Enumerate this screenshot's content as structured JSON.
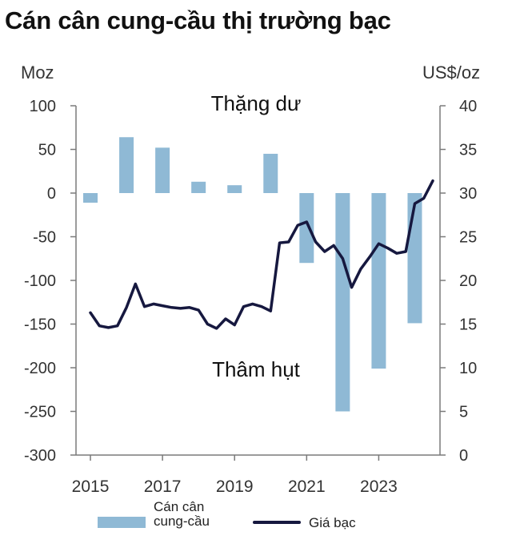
{
  "title": "Cán cân cung-cầu thị trường bạc",
  "colors": {
    "bar": "#8fb9d5",
    "line": "#16183f",
    "axis": "#7a7a7a",
    "text": "#333333"
  },
  "chart_data": {
    "type": "bar+line",
    "title": "Cán cân cung-cầu thị trường bạc",
    "left_axis": {
      "label": "Moz",
      "min": -300,
      "max": 100,
      "ticks": [
        100,
        50,
        0,
        -50,
        -100,
        -150,
        -200,
        -250,
        -300
      ],
      "tick_labels": [
        "100",
        "50",
        "0",
        "-50",
        "-100",
        "-150",
        "-200",
        "-250",
        "-300"
      ]
    },
    "right_axis": {
      "label": "US$/oz",
      "min": 0,
      "max": 40,
      "ticks": [
        40,
        35,
        30,
        25,
        20,
        15,
        10,
        5,
        0
      ],
      "tick_labels": [
        "40",
        "35",
        "30",
        "25",
        "20",
        "15",
        "10",
        "5",
        "0"
      ]
    },
    "x_axis": {
      "min": 2014.6,
      "max": 2024.7,
      "tick_labels": [
        "2015",
        "2017",
        "2019",
        "2021",
        "2023"
      ],
      "tick_years": [
        2015,
        2017,
        2019,
        2021,
        2023
      ]
    },
    "annotations": {
      "surplus": "Thặng dư",
      "deficit": "Thâm hụt"
    },
    "bars": {
      "name": "Cán cân cung-cầu",
      "categories": [
        "2015",
        "2016",
        "2017",
        "2018",
        "2019",
        "2020",
        "2021",
        "2022",
        "2023",
        "2024"
      ],
      "values": [
        -11,
        64,
        52,
        13,
        9,
        45,
        -80,
        -250,
        -201,
        -149
      ]
    },
    "line": {
      "name": "Giá bạc",
      "x": [
        2015.0,
        2015.25,
        2015.5,
        2015.75,
        2016.0,
        2016.25,
        2016.5,
        2016.75,
        2017.0,
        2017.25,
        2017.5,
        2017.75,
        2018.0,
        2018.25,
        2018.5,
        2018.75,
        2019.0,
        2019.25,
        2019.5,
        2019.75,
        2020.0,
        2020.25,
        2020.5,
        2020.75,
        2021.0,
        2021.25,
        2021.5,
        2021.75,
        2022.0,
        2022.25,
        2022.5,
        2022.75,
        2023.0,
        2023.25,
        2023.5,
        2023.75,
        2024.0,
        2024.25,
        2024.5
      ],
      "y": [
        16.3,
        14.8,
        14.6,
        14.8,
        16.9,
        19.6,
        17.0,
        17.3,
        17.1,
        16.9,
        16.8,
        16.9,
        16.6,
        15.0,
        14.5,
        15.6,
        14.9,
        17.0,
        17.3,
        17.0,
        16.5,
        24.3,
        24.4,
        26.3,
        26.7,
        24.4,
        23.3,
        24.0,
        22.5,
        19.2,
        21.3,
        22.7,
        24.2,
        23.7,
        23.1,
        23.3,
        28.8,
        29.4,
        31.4
      ]
    },
    "legend": {
      "bar_label": "Cán cân cung-cầu",
      "line_label": "Giá bạc",
      "placement": "bottom"
    }
  }
}
